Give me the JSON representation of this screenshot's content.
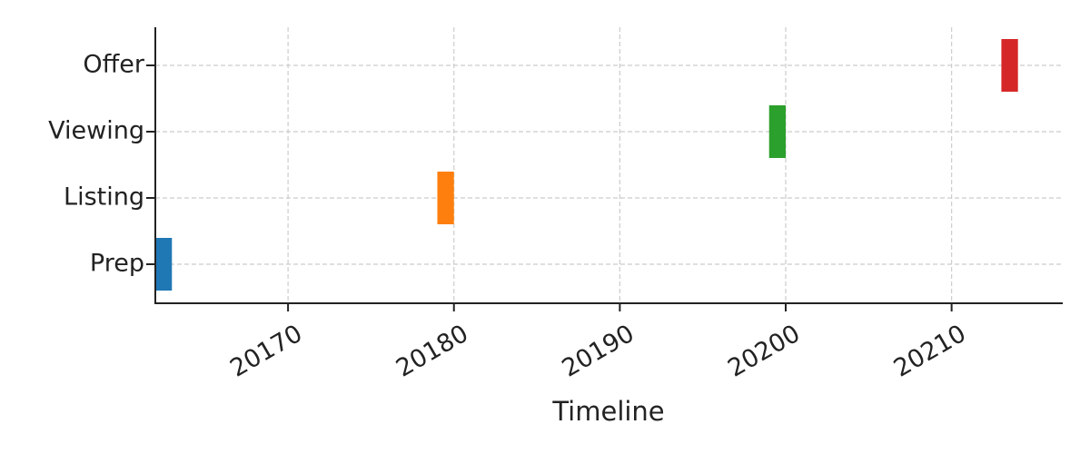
{
  "chart_data": {
    "type": "bar",
    "orientation": "horizontal",
    "title": "",
    "xlabel": "Timeline",
    "ylabel": "",
    "categories": [
      "Prep",
      "Listing",
      "Viewing",
      "Offer"
    ],
    "series": [
      {
        "values": [
          {
            "task": "Prep",
            "start": 20162,
            "end": 20163,
            "color": "#1f77b4"
          },
          {
            "task": "Listing",
            "start": 20179,
            "end": 20180,
            "color": "#ff7f0e"
          },
          {
            "task": "Viewing",
            "start": 20199,
            "end": 20200,
            "color": "#2ca02c"
          },
          {
            "task": "Offer",
            "start": 20213,
            "end": 20214,
            "color": "#d62728"
          }
        ]
      }
    ],
    "x_ticks": [
      "20170",
      "20180",
      "20190",
      "20200",
      "20210"
    ],
    "xlim": [
      20162,
      20216.7
    ],
    "grid": true,
    "legend": "none"
  }
}
